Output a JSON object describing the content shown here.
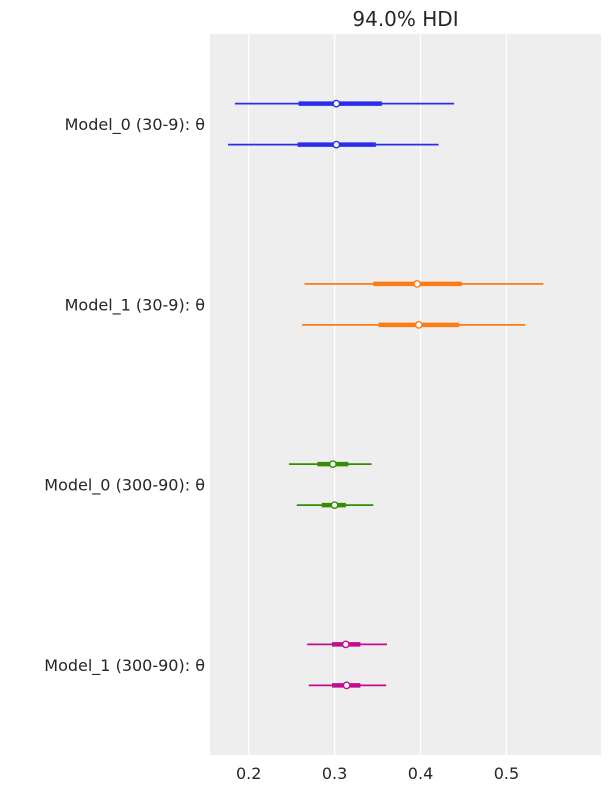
{
  "chart_data": {
    "type": "forest",
    "title": "94.0% HDI",
    "xlabel": "",
    "ylabel": "",
    "xlim": [
      0.155,
      0.61
    ],
    "xticks": [
      0.2,
      0.3,
      0.4,
      0.5
    ],
    "xtick_labels": [
      "0.2",
      "0.3",
      "0.4",
      "0.5"
    ],
    "grid": "vertical",
    "background": "#eeeeee",
    "groups": [
      {
        "label": "Model_0 (30-9): θ",
        "color": "#2a2eec",
        "chains": [
          {
            "hdi": [
              0.184,
              0.439
            ],
            "iqr": [
              0.258,
              0.355
            ],
            "center": 0.302
          },
          {
            "hdi": [
              0.176,
              0.421
            ],
            "iqr": [
              0.257,
              0.348
            ],
            "center": 0.302
          }
        ]
      },
      {
        "label": "Model_1 (30-9): θ",
        "color": "#fa7c17",
        "chains": [
          {
            "hdi": [
              0.265,
              0.543
            ],
            "iqr": [
              0.345,
              0.448
            ],
            "center": 0.396
          },
          {
            "hdi": [
              0.262,
              0.522
            ],
            "iqr": [
              0.351,
              0.445
            ],
            "center": 0.398
          }
        ]
      },
      {
        "label": "Model_0 (300-90): θ",
        "color": "#328c06",
        "chains": [
          {
            "hdi": [
              0.247,
              0.343
            ],
            "iqr": [
              0.28,
              0.316
            ],
            "center": 0.298
          },
          {
            "hdi": [
              0.256,
              0.345
            ],
            "iqr": [
              0.285,
              0.313
            ],
            "center": 0.3
          }
        ]
      },
      {
        "label": "Model_1 (300-90): θ",
        "color": "#c10c90",
        "chains": [
          {
            "hdi": [
              0.268,
              0.361
            ],
            "iqr": [
              0.297,
              0.33
            ],
            "center": 0.313
          },
          {
            "hdi": [
              0.27,
              0.36
            ],
            "iqr": [
              0.297,
              0.33
            ],
            "center": 0.314
          }
        ]
      }
    ]
  }
}
